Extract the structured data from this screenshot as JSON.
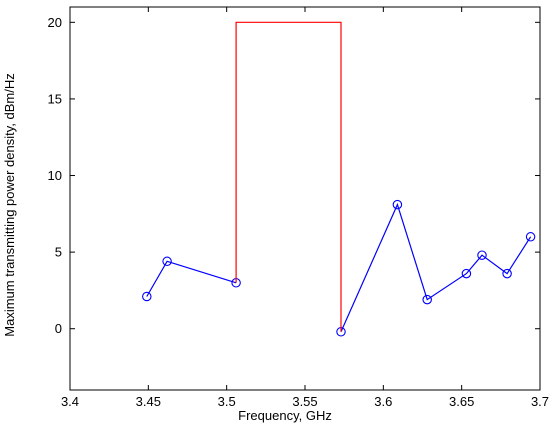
{
  "chart_data": {
    "type": "line",
    "xlabel": "Frequency, GHz",
    "ylabel": "Maximum transmitting power density, dBm/Hz",
    "xlim": [
      3.4,
      3.7
    ],
    "ylim": [
      -4,
      21
    ],
    "xticks": [
      "3.4",
      "3.45",
      "3.5",
      "3.55",
      "3.6",
      "3.65",
      "3.7"
    ],
    "xtick_values": [
      3.4,
      3.45,
      3.5,
      3.55,
      3.6,
      3.65,
      3.7
    ],
    "yticks": [
      "0",
      "5",
      "10",
      "15",
      "20"
    ],
    "ytick_values": [
      0,
      5,
      10,
      15,
      20
    ],
    "grid": false,
    "series": [
      {
        "color": "#0000ff",
        "marker": "circle",
        "segments": [
          {
            "x": [
              3.449,
              3.462,
              3.506
            ],
            "y": [
              2.1,
              4.4,
              3.0
            ]
          },
          {
            "x": [
              3.573,
              3.609,
              3.628,
              3.653,
              3.663,
              3.679,
              3.694
            ],
            "y": [
              -0.2,
              8.1,
              1.9,
              3.6,
              4.8,
              3.6,
              6.0
            ]
          }
        ]
      },
      {
        "color": "#ff0000",
        "marker": "none",
        "segments": [
          {
            "x": [
              3.506,
              3.506,
              3.573,
              3.573
            ],
            "y": [
              3.0,
              20,
              20,
              -0.2
            ]
          }
        ]
      }
    ]
  }
}
